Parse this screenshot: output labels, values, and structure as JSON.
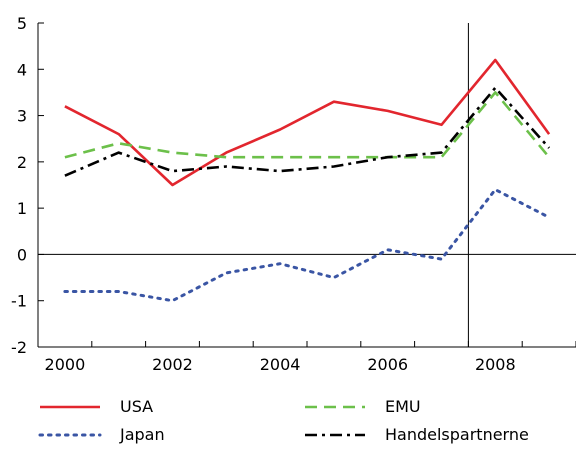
{
  "chart_data": {
    "type": "line",
    "x": [
      2000,
      2001,
      2002,
      2003,
      2004,
      2005,
      2006,
      2007,
      2008,
      2009
    ],
    "ylim": [
      -2,
      5
    ],
    "xlim": [
      1999.5,
      2009.5
    ],
    "yticks": [
      -2,
      -1,
      0,
      1,
      2,
      3,
      4,
      5
    ],
    "xticks": [
      2000,
      2002,
      2004,
      2006,
      2008
    ],
    "vline_x": 2007.5,
    "grid": false,
    "legend_position": "bottom",
    "series": [
      {
        "name": "USA",
        "color": "#e2262e",
        "dash": "solid",
        "values": [
          3.2,
          2.6,
          1.5,
          2.2,
          2.7,
          3.3,
          3.1,
          2.8,
          4.2,
          2.6
        ]
      },
      {
        "name": "EMU",
        "color": "#6cc04a",
        "dash": "dashed",
        "values": [
          2.1,
          2.4,
          2.2,
          2.1,
          2.1,
          2.1,
          2.1,
          2.1,
          3.5,
          2.1
        ]
      },
      {
        "name": "Japan",
        "color": "#3a55a4",
        "dash": "dotted",
        "values": [
          -0.8,
          -0.8,
          -1.0,
          -0.4,
          -0.2,
          -0.5,
          0.1,
          -0.1,
          1.4,
          0.8
        ]
      },
      {
        "name": "Handelspartnerne",
        "color": "#000000",
        "dash": "dashdot",
        "values": [
          1.7,
          2.2,
          1.8,
          1.9,
          1.8,
          1.9,
          2.1,
          2.2,
          3.6,
          2.3
        ]
      }
    ],
    "legend_order": [
      "USA",
      "EMU",
      "Japan",
      "Handelspartnerne"
    ]
  }
}
